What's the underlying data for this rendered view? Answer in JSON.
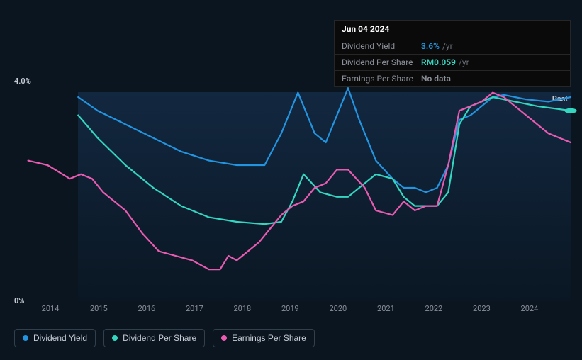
{
  "tooltip": {
    "date": "Jun 04 2024",
    "rows": [
      {
        "label": "Dividend Yield",
        "value": "3.6%",
        "unit": "/yr",
        "color": "#2394df"
      },
      {
        "label": "Dividend Per Share",
        "value": "RM0.059",
        "unit": "/yr",
        "color": "#35d6c0"
      },
      {
        "label": "Earnings Per Share",
        "value": "No data",
        "unit": "",
        "color": "#8a8f99"
      }
    ]
  },
  "chart": {
    "type": "line",
    "y_top_label": "4.0%",
    "y_bottom_label": "0%",
    "past_label": "Past",
    "years": [
      "2014",
      "2015",
      "2016",
      "2017",
      "2018",
      "2019",
      "2020",
      "2021",
      "2022",
      "2023",
      "2024"
    ],
    "year_positions_pct": [
      6.5,
      15.2,
      23.8,
      32.4,
      41.0,
      49.6,
      58.2,
      66.8,
      75.4,
      84.0,
      92.6
    ],
    "background": "#0a1520",
    "shaded_start_pct": 11.5,
    "line_width": 2.2,
    "series": [
      {
        "name": "Dividend Yield",
        "color": "#2394df",
        "points": [
          [
            11.5,
            90
          ],
          [
            15,
            84
          ],
          [
            20,
            78
          ],
          [
            25,
            72
          ],
          [
            30,
            66
          ],
          [
            35,
            62
          ],
          [
            40,
            60
          ],
          [
            45,
            60
          ],
          [
            48,
            74
          ],
          [
            51,
            92
          ],
          [
            54,
            74
          ],
          [
            56,
            70
          ],
          [
            58,
            82
          ],
          [
            60,
            94
          ],
          [
            62,
            80
          ],
          [
            65,
            62
          ],
          [
            68,
            54
          ],
          [
            70,
            50
          ],
          [
            72,
            50
          ],
          [
            74,
            48
          ],
          [
            76,
            50
          ],
          [
            78,
            60
          ],
          [
            80,
            80
          ],
          [
            82,
            82
          ],
          [
            84,
            86
          ],
          [
            86,
            90
          ],
          [
            88,
            91
          ],
          [
            92,
            89
          ],
          [
            96,
            88
          ],
          [
            100,
            90
          ]
        ]
      },
      {
        "name": "Dividend Per Share",
        "color": "#35d6c0",
        "points": [
          [
            11.5,
            82
          ],
          [
            15,
            72
          ],
          [
            20,
            60
          ],
          [
            25,
            50
          ],
          [
            30,
            42
          ],
          [
            35,
            37
          ],
          [
            40,
            35
          ],
          [
            45,
            34
          ],
          [
            48,
            35
          ],
          [
            50,
            44
          ],
          [
            52,
            56
          ],
          [
            55,
            48
          ],
          [
            58,
            46
          ],
          [
            60,
            46
          ],
          [
            63,
            52
          ],
          [
            65,
            56
          ],
          [
            68,
            54
          ],
          [
            70,
            46
          ],
          [
            72,
            42
          ],
          [
            74,
            42
          ],
          [
            76,
            42
          ],
          [
            78,
            48
          ],
          [
            80,
            78
          ],
          [
            82,
            86
          ],
          [
            84,
            88
          ],
          [
            86,
            90
          ],
          [
            90,
            88
          ],
          [
            94,
            86
          ],
          [
            100,
            84
          ]
        ]
      },
      {
        "name": "Earnings Per Share",
        "color": "#e85bb0",
        "points": [
          [
            2.5,
            62
          ],
          [
            6,
            60
          ],
          [
            10,
            54
          ],
          [
            12,
            56
          ],
          [
            14,
            54
          ],
          [
            16,
            48
          ],
          [
            18,
            44
          ],
          [
            20,
            40
          ],
          [
            23,
            30
          ],
          [
            26,
            22
          ],
          [
            29,
            20
          ],
          [
            32,
            18
          ],
          [
            35,
            14
          ],
          [
            37,
            14
          ],
          [
            38.5,
            20
          ],
          [
            40,
            18
          ],
          [
            42,
            22
          ],
          [
            44,
            26
          ],
          [
            46,
            32
          ],
          [
            48,
            38
          ],
          [
            50,
            42
          ],
          [
            52,
            44
          ],
          [
            54,
            50
          ],
          [
            56,
            52
          ],
          [
            58,
            58
          ],
          [
            60,
            58
          ],
          [
            63,
            50
          ],
          [
            65,
            40
          ],
          [
            68,
            38
          ],
          [
            70,
            44
          ],
          [
            72,
            40
          ],
          [
            74,
            42
          ],
          [
            76,
            42
          ],
          [
            78,
            60
          ],
          [
            80,
            84
          ],
          [
            82,
            86
          ],
          [
            84,
            88
          ],
          [
            86,
            92
          ],
          [
            88,
            90
          ],
          [
            90,
            86
          ],
          [
            93,
            80
          ],
          [
            96,
            74
          ],
          [
            100,
            70
          ]
        ]
      }
    ]
  },
  "legend": [
    {
      "label": "Dividend Yield",
      "color": "#2394df"
    },
    {
      "label": "Dividend Per Share",
      "color": "#35d6c0"
    },
    {
      "label": "Earnings Per Share",
      "color": "#e85bb0"
    }
  ]
}
